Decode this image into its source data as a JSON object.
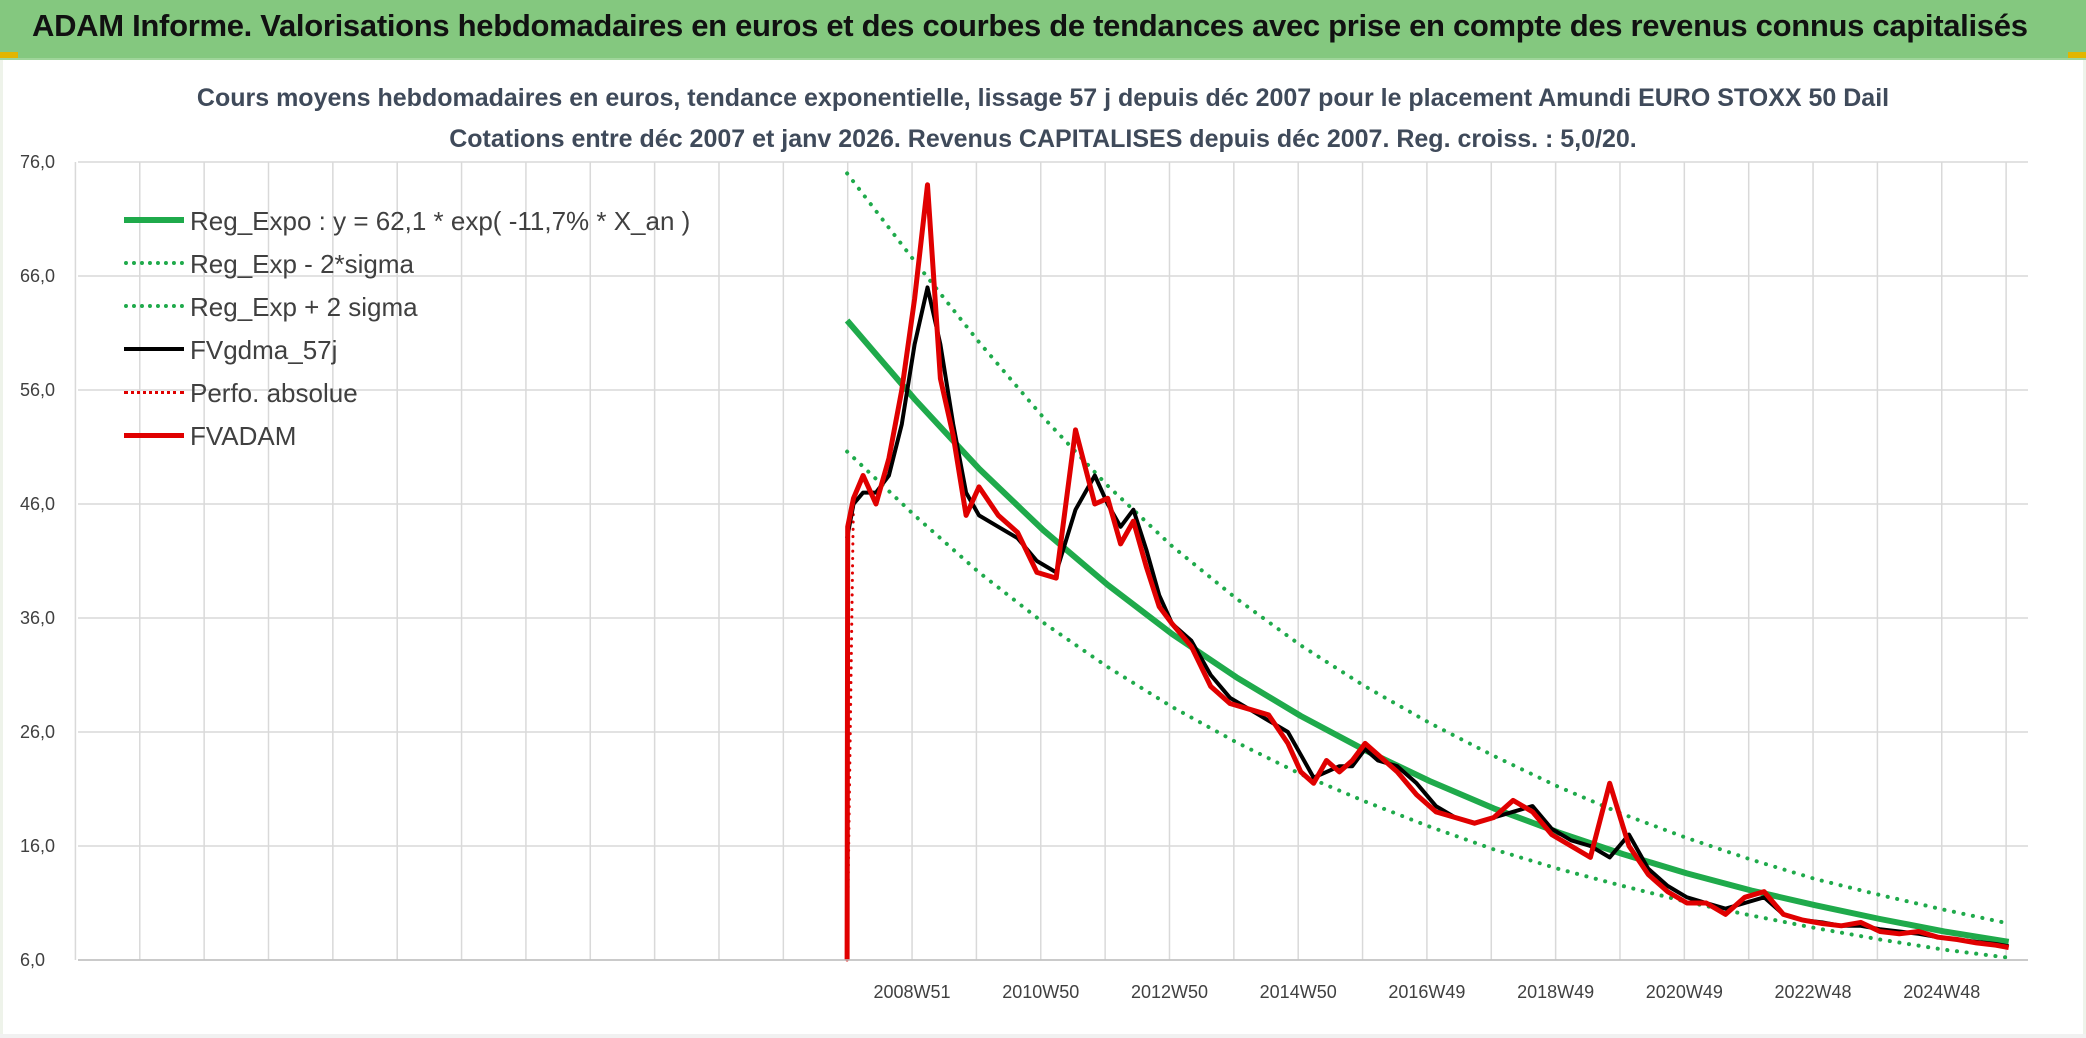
{
  "header": {
    "banner_title": "ADAM Informe. Valorisations hebdomadaires en euros et des courbes de tendances avec prise en compte des revenus connus capitalisés"
  },
  "colors": {
    "banner": "#84c87f",
    "reg_expo": "#1faa4b",
    "sigma_bands": "#1faa4b",
    "fvgdma": "#000000",
    "perfo": "#e00000",
    "fvadam": "#e00000",
    "grid": "#d9d9d9"
  },
  "chart_data": {
    "type": "line",
    "title": "Cours moyens hebdomadaires en euros, tendance exponentielle, lissage 57 j depuis déc 2007 pour le placement Amundi EURO STOXX 50 Dail",
    "subtitle": "Cotations entre déc 2007 et janv 2026. Revenus CAPITALISES depuis déc 2007. Reg. croiss. : 5,0/20.",
    "xlabel": "",
    "ylabel": "",
    "ylim": [
      6.0,
      76.0
    ],
    "y_ticks": [
      "6,0",
      "16,0",
      "26,0",
      "36,0",
      "46,0",
      "56,0",
      "66,0",
      "76,0"
    ],
    "x_tick_labels": [
      "2008W51",
      "2010W50",
      "2012W50",
      "2014W50",
      "2016W49",
      "2018W49",
      "2020W49",
      "2022W48",
      "2024W48"
    ],
    "x_tick_years": [
      2008.96,
      2010.96,
      2012.96,
      2014.96,
      2016.96,
      2018.96,
      2020.96,
      2022.96,
      2024.96
    ],
    "x_range": [
      1996.0,
      2026.3
    ],
    "grid": true,
    "legend_position": "top-left",
    "legend": [
      {
        "label": "Reg_Expo : y = 62,1 * exp( -11,7% *  X_an )",
        "color": "#1faa4b",
        "style": "solid",
        "width": 6
      },
      {
        "label": "Reg_Exp - 2*sigma",
        "color": "#1faa4b",
        "style": "dotted",
        "width": 4
      },
      {
        "label": "Reg_Exp + 2 sigma",
        "color": "#1faa4b",
        "style": "dotted",
        "width": 4
      },
      {
        "label": "FVgdma_57j",
        "color": "#000000",
        "style": "solid",
        "width": 4
      },
      {
        "label": "Perfo. absolue",
        "color": "#e00000",
        "style": "dotted",
        "width": 3
      },
      {
        "label": "FVADAM",
        "color": "#e00000",
        "style": "solid",
        "width": 5
      }
    ],
    "series": [
      {
        "name": "Reg_Expo : y = 62,1 * exp( -11,7% *  X_an )",
        "x": [
          2007.95,
          2009.0,
          2010.0,
          2011.0,
          2012.0,
          2013.0,
          2014.0,
          2015.0,
          2016.0,
          2017.0,
          2018.0,
          2019.0,
          2020.0,
          2021.0,
          2022.0,
          2023.0,
          2024.0,
          2025.0,
          2026.0
        ],
        "y": [
          62.1,
          55.2,
          49.1,
          43.7,
          38.9,
          34.6,
          30.8,
          27.4,
          24.4,
          21.7,
          19.3,
          17.2,
          15.3,
          13.6,
          12.1,
          10.8,
          9.6,
          8.5,
          7.6
        ]
      },
      {
        "name": "Reg_Exp - 2*sigma",
        "x": [
          2007.95,
          2009.0,
          2010.0,
          2011.0,
          2012.0,
          2013.0,
          2014.0,
          2015.0,
          2016.0,
          2017.0,
          2018.0,
          2019.0,
          2020.0,
          2021.0,
          2022.0,
          2023.0,
          2024.0,
          2025.0,
          2026.0
        ],
        "y": [
          50.6,
          45.0,
          40.0,
          35.6,
          31.7,
          28.2,
          25.1,
          22.3,
          19.9,
          17.7,
          15.7,
          14.0,
          12.5,
          11.1,
          9.9,
          8.8,
          7.8,
          6.9,
          6.2
        ]
      },
      {
        "name": "Reg_Exp + 2 sigma",
        "x": [
          2007.95,
          2009.0,
          2010.0,
          2011.0,
          2012.0,
          2013.0,
          2014.0,
          2015.0,
          2016.0,
          2017.0,
          2018.0,
          2019.0,
          2020.0,
          2021.0,
          2022.0,
          2023.0,
          2024.0,
          2025.0,
          2026.0
        ],
        "y": [
          75.0,
          67.3,
          60.2,
          53.6,
          47.6,
          42.3,
          37.7,
          33.6,
          30.0,
          26.8,
          23.9,
          21.2,
          18.8,
          16.7,
          14.8,
          13.1,
          11.7,
          10.4,
          9.2
        ]
      },
      {
        "name": "FVgdma_57j",
        "x": [
          2007.95,
          2008.05,
          2008.2,
          2008.4,
          2008.6,
          2008.8,
          2009.0,
          2009.2,
          2009.4,
          2009.6,
          2009.8,
          2010.0,
          2010.3,
          2010.6,
          2010.9,
          2011.2,
          2011.5,
          2011.8,
          2012.0,
          2012.2,
          2012.4,
          2012.6,
          2012.8,
          2013.0,
          2013.3,
          2013.6,
          2013.9,
          2014.2,
          2014.5,
          2014.8,
          2015.0,
          2015.2,
          2015.4,
          2015.6,
          2015.8,
          2016.0,
          2016.2,
          2016.5,
          2016.8,
          2017.1,
          2017.4,
          2017.7,
          2018.0,
          2018.3,
          2018.6,
          2018.9,
          2019.2,
          2019.5,
          2019.8,
          2020.1,
          2020.4,
          2020.7,
          2021.0,
          2021.3,
          2021.6,
          2021.9,
          2022.2,
          2022.5,
          2022.8,
          2023.1,
          2023.4,
          2023.7,
          2024.0,
          2024.3,
          2024.6,
          2024.9,
          2025.2,
          2025.5,
          2025.8,
          2026.0
        ],
        "y": [
          43.0,
          46.0,
          47.0,
          47.0,
          48.5,
          53.0,
          60.0,
          65.0,
          60.0,
          53.0,
          47.0,
          45.0,
          44.0,
          43.0,
          41.0,
          40.0,
          45.5,
          48.5,
          46.0,
          44.0,
          45.5,
          42.0,
          38.0,
          35.5,
          34.0,
          31.0,
          29.0,
          28.0,
          27.0,
          26.0,
          24.0,
          22.0,
          22.5,
          23.0,
          23.0,
          24.5,
          23.5,
          23.0,
          21.5,
          19.5,
          18.5,
          18.0,
          18.5,
          19.0,
          19.5,
          17.5,
          16.5,
          16.0,
          15.0,
          17.0,
          14.0,
          12.5,
          11.5,
          11.0,
          10.5,
          11.0,
          11.5,
          10.0,
          9.5,
          9.3,
          9.0,
          9.0,
          8.7,
          8.5,
          8.3,
          8.0,
          7.8,
          7.6,
          7.4,
          7.2
        ]
      },
      {
        "name": "Perfo. absolue",
        "x": [
          2007.95,
          2008.05,
          2008.2,
          2008.4,
          2008.6,
          2008.8,
          2009.0,
          2009.2,
          2009.4,
          2009.6,
          2009.8,
          2010.0,
          2010.3,
          2010.6,
          2010.9,
          2011.2,
          2011.5,
          2011.8,
          2012.0,
          2012.2,
          2012.4,
          2012.6,
          2012.8,
          2013.0,
          2013.3,
          2013.6,
          2013.9,
          2014.2,
          2014.5,
          2014.8,
          2015.0,
          2015.2,
          2015.4,
          2015.6,
          2015.8,
          2016.0,
          2016.2,
          2016.5,
          2016.8,
          2017.1,
          2017.4,
          2017.7,
          2018.0,
          2018.3,
          2018.6,
          2018.9,
          2019.2,
          2019.5,
          2019.8,
          2020.1,
          2020.4,
          2020.7,
          2021.0,
          2021.3,
          2021.6,
          2021.9,
          2022.2,
          2022.5,
          2022.8,
          2023.1,
          2023.4,
          2023.7,
          2024.0,
          2024.3,
          2024.6,
          2024.9,
          2025.2,
          2025.5,
          2025.8,
          2026.0
        ],
        "y": [
          6.0,
          46.5,
          48.5,
          46.0,
          50.0,
          56.0,
          64.0,
          74.0,
          57.0,
          52.0,
          45.0,
          47.5,
          45.0,
          43.5,
          40.0,
          39.5,
          52.5,
          46.0,
          46.5,
          42.5,
          44.5,
          40.5,
          37.0,
          35.5,
          33.5,
          30.0,
          28.5,
          28.0,
          27.5,
          25.0,
          22.5,
          21.5,
          23.5,
          22.5,
          23.5,
          25.0,
          24.0,
          22.5,
          20.5,
          19.0,
          18.5,
          18.0,
          18.5,
          20.0,
          19.0,
          17.0,
          16.0,
          15.0,
          21.5,
          16.0,
          13.5,
          12.0,
          11.0,
          11.0,
          10.0,
          11.5,
          12.0,
          10.0,
          9.5,
          9.2,
          9.0,
          9.3,
          8.5,
          8.3,
          8.5,
          8.0,
          7.8,
          7.5,
          7.3,
          7.1
        ]
      },
      {
        "name": "FVADAM",
        "x": [
          2007.95,
          2007.96,
          2008.05,
          2008.2,
          2008.4,
          2008.6,
          2008.8,
          2009.0,
          2009.2,
          2009.4,
          2009.6,
          2009.8,
          2010.0,
          2010.3,
          2010.6,
          2010.9,
          2011.2,
          2011.5,
          2011.8,
          2012.0,
          2012.2,
          2012.4,
          2012.6,
          2012.8,
          2013.0,
          2013.3,
          2013.6,
          2013.9,
          2014.2,
          2014.5,
          2014.8,
          2015.0,
          2015.2,
          2015.4,
          2015.6,
          2015.8,
          2016.0,
          2016.2,
          2016.5,
          2016.8,
          2017.1,
          2017.4,
          2017.7,
          2018.0,
          2018.3,
          2018.6,
          2018.9,
          2019.2,
          2019.5,
          2019.8,
          2020.1,
          2020.4,
          2020.7,
          2021.0,
          2021.3,
          2021.6,
          2021.9,
          2022.2,
          2022.5,
          2022.8,
          2023.1,
          2023.4,
          2023.7,
          2024.0,
          2024.3,
          2024.6,
          2024.9,
          2025.2,
          2025.5,
          2025.8,
          2026.0
        ],
        "y": [
          6.0,
          44.0,
          46.5,
          48.5,
          46.0,
          50.0,
          56.0,
          64.0,
          74.0,
          57.0,
          52.0,
          45.0,
          47.5,
          45.0,
          43.5,
          40.0,
          39.5,
          52.5,
          46.0,
          46.5,
          42.5,
          44.5,
          40.5,
          37.0,
          35.5,
          33.5,
          30.0,
          28.5,
          28.0,
          27.5,
          25.0,
          22.5,
          21.5,
          23.5,
          22.5,
          23.5,
          25.0,
          24.0,
          22.5,
          20.5,
          19.0,
          18.5,
          18.0,
          18.5,
          20.0,
          19.0,
          17.0,
          16.0,
          15.0,
          21.5,
          16.0,
          13.5,
          12.0,
          11.0,
          11.0,
          10.0,
          11.5,
          12.0,
          10.0,
          9.5,
          9.2,
          9.0,
          9.3,
          8.5,
          8.3,
          8.5,
          8.0,
          7.8,
          7.5,
          7.3,
          7.1
        ]
      }
    ]
  }
}
